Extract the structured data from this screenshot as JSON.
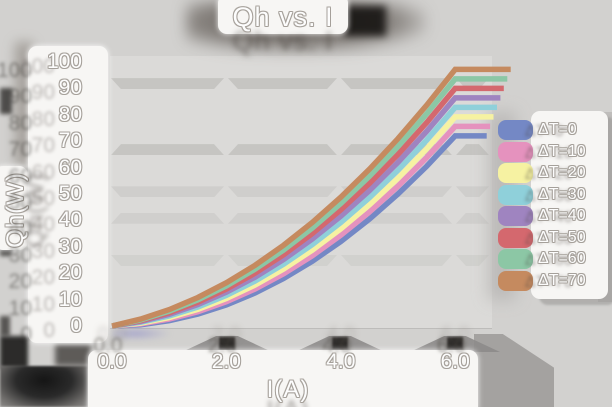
{
  "title": "Qh vs. I",
  "y_axis": {
    "label": "Qh(W)",
    "ticks": [
      "100",
      "90",
      "80",
      "70",
      "60",
      "50",
      "40",
      "30",
      "20",
      "10",
      "0"
    ]
  },
  "x_axis": {
    "label": "I(A)",
    "ticks": [
      "0.0",
      "2.0",
      "4.0",
      "6.0"
    ]
  },
  "legend": {
    "entries": [
      {
        "label": "ΔT=0",
        "color": "#7488c5"
      },
      {
        "label": "ΔT=10",
        "color": "#e592be"
      },
      {
        "label": "ΔT=20",
        "color": "#f6f2a2"
      },
      {
        "label": "ΔT=30",
        "color": "#8fd0da"
      },
      {
        "label": "ΔT=40",
        "color": "#9f84c0"
      },
      {
        "label": "ΔT=50",
        "color": "#d4686e"
      },
      {
        "label": "ΔT=60",
        "color": "#8cc7a5"
      },
      {
        "label": "ΔT=70",
        "color": "#c58a5f"
      }
    ]
  },
  "colors": {
    "background": "#d2d1cf",
    "plot_background": "#dbdad8",
    "panel": "#f7f6f4",
    "grid_band": "#c3c2c0",
    "text": "#fdfdfd",
    "text_outline": "#a5a09a"
  },
  "chart_data": {
    "type": "line",
    "title": "Qh vs. I",
    "xlabel": "I(A)",
    "ylabel": "Qh(W)",
    "xlim": [
      0,
      6.6
    ],
    "ylim": [
      0,
      100
    ],
    "x_ticks": [
      0,
      2,
      4,
      6
    ],
    "y_ticks": [
      0,
      10,
      20,
      30,
      40,
      50,
      60,
      70,
      80,
      90,
      100
    ],
    "grid": "horizontal-bands",
    "grid_band_values": [
      92,
      67,
      51,
      41,
      25
    ],
    "legend_position": "right",
    "x": [
      0,
      0.5,
      1,
      1.5,
      2,
      2.5,
      3,
      3.5,
      4,
      4.5,
      5,
      5.5,
      6
    ],
    "series": [
      {
        "name": "ΔT=0",
        "delta_t": 0,
        "color": "#7488c5",
        "values": [
          0,
          0.5,
          2,
          4.5,
          8,
          12.5,
          18,
          24.5,
          32,
          40.5,
          50,
          60.5,
          72
        ]
      },
      {
        "name": "ΔT=10",
        "delta_t": 10,
        "color": "#e592be",
        "values": [
          0,
          0.8,
          2.6,
          5.4,
          9.2,
          14,
          19.8,
          26.6,
          34.4,
          43.2,
          53,
          63.8,
          75.6
        ]
      },
      {
        "name": "ΔT=20",
        "delta_t": 20,
        "color": "#f6f2a2",
        "values": [
          0,
          1.1,
          3.2,
          6.3,
          10.4,
          15.5,
          21.6,
          28.7,
          36.8,
          45.9,
          56,
          67.1,
          79.2
        ]
      },
      {
        "name": "ΔT=30",
        "delta_t": 30,
        "color": "#8fd0da",
        "values": [
          0,
          1.4,
          3.8,
          7.2,
          11.6,
          17,
          23.4,
          30.8,
          39.2,
          48.6,
          59,
          70.4,
          82.8
        ]
      },
      {
        "name": "ΔT=40",
        "delta_t": 40,
        "color": "#9f84c0",
        "values": [
          0,
          1.7,
          4.4,
          8.1,
          12.8,
          18.5,
          25.2,
          32.9,
          41.6,
          51.3,
          62,
          73.7,
          86.4
        ]
      },
      {
        "name": "ΔT=50",
        "delta_t": 50,
        "color": "#d4686e",
        "values": [
          0,
          2,
          5,
          9,
          14,
          20,
          27,
          35,
          44,
          54,
          65,
          77,
          90
        ]
      },
      {
        "name": "ΔT=60",
        "delta_t": 60,
        "color": "#8cc7a5",
        "values": [
          0,
          2.3,
          5.6,
          9.9,
          15.2,
          21.5,
          28.8,
          37.1,
          46.4,
          56.7,
          68,
          80.3,
          93.6
        ]
      },
      {
        "name": "ΔT=70",
        "delta_t": 70,
        "color": "#c58a5f",
        "values": [
          0,
          2.6,
          6.2,
          10.8,
          16.4,
          23,
          30.6,
          39.2,
          48.8,
          59.4,
          71,
          83.6,
          97.2
        ]
      }
    ]
  }
}
